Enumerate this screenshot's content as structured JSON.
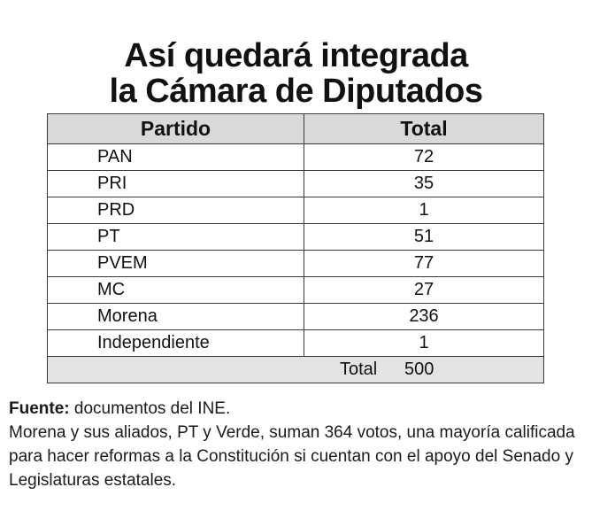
{
  "title": {
    "line1": "Así quedará integrada",
    "line2": "la Cámara de Diputados"
  },
  "chart_data": {
    "type": "table",
    "columns": [
      "Partido",
      "Total"
    ],
    "rows": [
      {
        "party": "PAN",
        "total": "72"
      },
      {
        "party": "PRI",
        "total": "35"
      },
      {
        "party": "PRD",
        "total": "1"
      },
      {
        "party": "PT",
        "total": "51"
      },
      {
        "party": "PVEM",
        "total": "77"
      },
      {
        "party": "MC",
        "total": "27"
      },
      {
        "party": "Morena",
        "total": "236"
      },
      {
        "party": "Independiente",
        "total": "1"
      }
    ],
    "summary": {
      "label": "Total",
      "value": "500"
    }
  },
  "notes": {
    "source_label": "Fuente:",
    "source_text": " documentos del INE.",
    "description": "Morena y sus aliados, PT y Verde, suman 364 votos, una mayoría calificada para hacer reformas a la Constitución si cuentan con el apoyo del Senado y Legislaturas estatales."
  },
  "colors": {
    "header_bg": "#d9d9d9",
    "total_row_bg": "#e3e3e3",
    "border": "#3a3a3a",
    "text": "#1a1a1a"
  }
}
